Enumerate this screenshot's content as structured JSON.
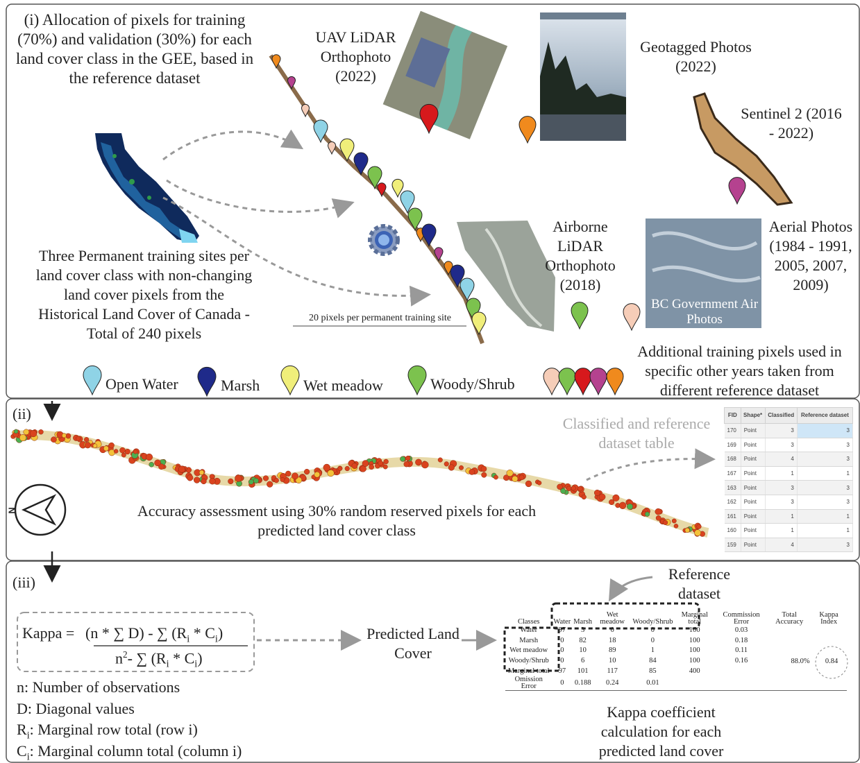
{
  "panel_i": {
    "title": "(i) Allocation of pixels for training (70%) and validation (30%) for each land cover class in the GEE, based in the reference dataset",
    "permanent_sites": "Three Permanent training sites per land cover class with non-changing land cover pixels from the Historical Land Cover of Canada - Total of 240 pixels",
    "pixels_per_site": "20 pixels per permanent training site",
    "sources": {
      "uav": "UAV LiDAR Orthophoto (2022)",
      "geotagged": "Geotagged Photos (2022)",
      "sentinel": "Sentinel 2 (2016 - 2022)",
      "airborne": "Airborne LiDAR Orthophoto (2018)",
      "aerial": "Aerial Photos (1984 - 1991, 2005, 2007, 2009)",
      "aerial_overlay": "BC Government Air Photos"
    },
    "legend": [
      "Open Water",
      "Marsh",
      "Wet meadow",
      "Woody/Shrub"
    ],
    "additional": "Additional training pixels used in specific other years taken from different reference dataset"
  },
  "panel_ii": {
    "label": "(ii)",
    "table_caption": "Classified and reference dataset table",
    "caption": "Accuracy assessment using 30% random reserved pixels for each predicted land cover class",
    "compass": "N",
    "table": {
      "header": [
        "FID",
        "Shape*",
        "Classified",
        "Reference dataset"
      ],
      "rows": [
        [
          170,
          "Point",
          3,
          3
        ],
        [
          169,
          "Point",
          3,
          3
        ],
        [
          168,
          "Point",
          4,
          3
        ],
        [
          167,
          "Point",
          1,
          1
        ],
        [
          163,
          "Point",
          3,
          3
        ],
        [
          162,
          "Point",
          3,
          3
        ],
        [
          161,
          "Point",
          1,
          1
        ],
        [
          160,
          "Point",
          1,
          1
        ],
        [
          159,
          "Point",
          4,
          3
        ]
      ]
    }
  },
  "panel_iii": {
    "label": "(iii)",
    "kappa": {
      "lhs": "Kappa =",
      "numerator": {
        "a": "(n * ∑ D) - ∑ (R",
        "sub1": "i",
        "b": " * C",
        "sub2": "i",
        "c": ")"
      },
      "denominator": {
        "base": "n",
        "sup": "2",
        "a": "- ∑ (R",
        "sub1": "i",
        "b": " * C",
        "sub2": "i",
        "c": ")"
      }
    },
    "definitions": [
      {
        "symbol": "n",
        "text": ": Number of observations"
      },
      {
        "symbol": "D",
        "text": ": Diagonal values"
      },
      {
        "symbol": "R",
        "sub": "i",
        "text": ": Marginal row total (row i)"
      },
      {
        "symbol": "C",
        "sub": "i",
        "text": ": Marginal column total (column i)"
      }
    ],
    "predicted": "Predicted Land Cover",
    "reference": "Reference dataset",
    "caption": "Kappa coefficient calculation for each predicted land cover",
    "table": {
      "header": [
        "Classes",
        "Water",
        "Marsh",
        "Wet meadow",
        "Woody/Shrub",
        "Marginal total",
        "Commission Error",
        "Total Accuracy",
        "Kappa Index"
      ],
      "rows": [
        [
          "Water",
          97,
          3,
          0,
          0,
          100,
          0.03
        ],
        [
          "Marsh",
          0,
          82,
          18,
          0,
          100,
          0.18
        ],
        [
          "Wet meadow",
          0,
          10,
          89,
          1,
          100,
          0.11
        ],
        [
          "Woody/Shrub",
          0,
          6,
          10,
          84,
          100,
          0.16
        ],
        [
          "Marginal total",
          97,
          101,
          117,
          85,
          400
        ],
        [
          "Omission Error",
          0,
          0.188,
          0.24,
          0.01
        ]
      ],
      "total_accuracy": "88.0%",
      "kappa_index": 0.84
    }
  }
}
